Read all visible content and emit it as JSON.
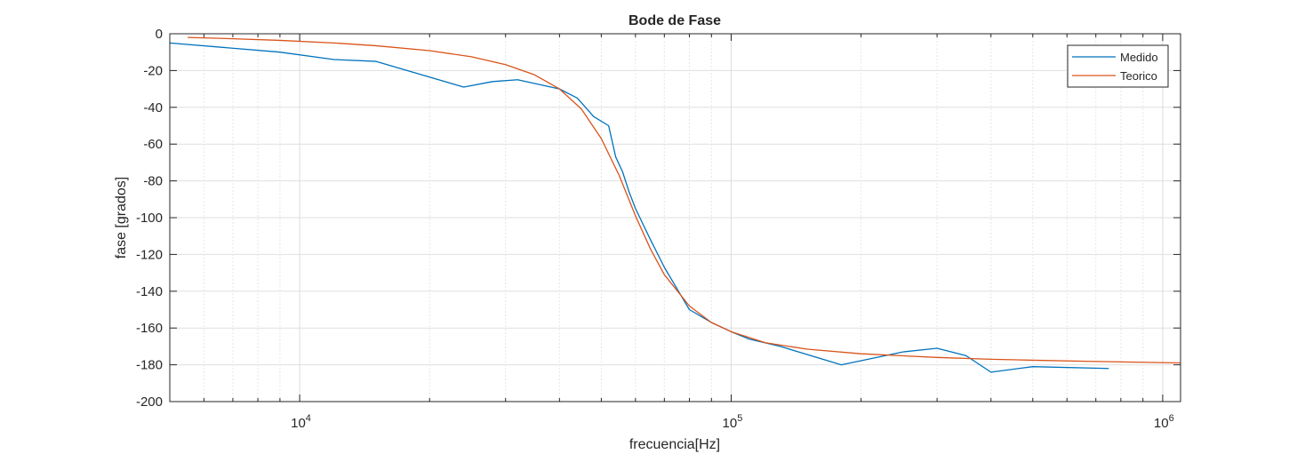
{
  "chart_data": {
    "type": "line",
    "title": "Bode de Fase",
    "xlabel": "frecuencia[Hz]",
    "ylabel": "fase [grados]",
    "xscale": "log",
    "xlim": [
      5000,
      1100000
    ],
    "ylim": [
      -200,
      0
    ],
    "grid": true,
    "legend_position": "top-right",
    "x_ticks": [
      {
        "value": 10000,
        "base": "10",
        "exp": "4"
      },
      {
        "value": 100000,
        "base": "10",
        "exp": "5"
      },
      {
        "value": 1000000,
        "base": "10",
        "exp": "6"
      }
    ],
    "y_ticks": [
      0,
      -20,
      -40,
      -60,
      -80,
      -100,
      -120,
      -140,
      -160,
      -180,
      -200
    ],
    "series": [
      {
        "name": "Medido",
        "color": "#0072BD",
        "x": [
          5000,
          9000,
          12000,
          15000,
          24000,
          28000,
          32000,
          40000,
          44000,
          48000,
          52000,
          54000,
          56000,
          58000,
          60000,
          65000,
          70000,
          80000,
          90000,
          100000,
          110000,
          130000,
          180000,
          250000,
          300000,
          350000,
          400000,
          500000,
          750000
        ],
        "y": [
          -5,
          -10,
          -14,
          -15,
          -29,
          -26,
          -25,
          -30,
          -35,
          -45,
          -50,
          -67,
          -75,
          -86,
          -95,
          -112,
          -127,
          -150,
          -157,
          -162,
          -166,
          -170,
          -180,
          -173,
          -171,
          -175,
          -184,
          -181,
          -182
        ]
      },
      {
        "name": "Teorico",
        "color": "#D95319",
        "x": [
          5500,
          7000,
          9000,
          12000,
          15000,
          20000,
          25000,
          30000,
          35000,
          40000,
          45000,
          50000,
          55000,
          60000,
          65000,
          70000,
          80000,
          90000,
          100000,
          120000,
          150000,
          200000,
          300000,
          400000,
          500000,
          700000,
          1100000
        ],
        "y": [
          -2,
          -2.7,
          -3.6,
          -5,
          -6.5,
          -9.2,
          -12.5,
          -16.8,
          -22.3,
          -30,
          -41,
          -57,
          -77,
          -99,
          -117,
          -131,
          -148,
          -157,
          -162,
          -168,
          -171.5,
          -174,
          -176,
          -177,
          -177.5,
          -178.2,
          -179
        ]
      }
    ]
  }
}
